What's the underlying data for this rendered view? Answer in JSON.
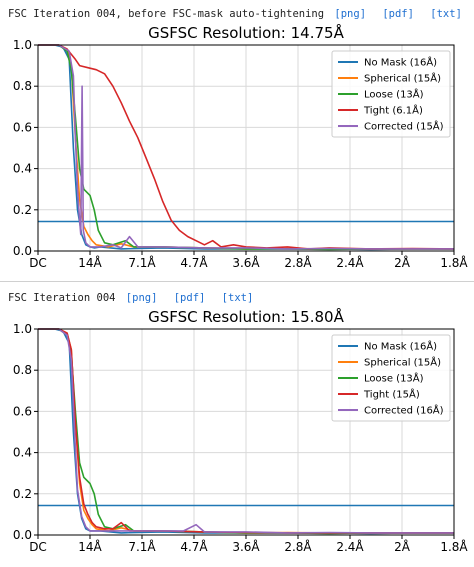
{
  "panels": [
    {
      "caption": "FSC Iteration 004, before FSC-mask auto-tightening",
      "links": [
        "[png]",
        "[pdf]",
        "[txt]"
      ]
    },
    {
      "caption": "FSC Iteration 004",
      "links": [
        "[png]",
        "[pdf]",
        "[txt]"
      ]
    }
  ],
  "chart_data": [
    {
      "type": "line",
      "title": "GSFSC Resolution: 14.75Å",
      "x_tick_labels": [
        "DC",
        "14Å",
        "7.1Å",
        "4.7Å",
        "3.6Å",
        "2.8Å",
        "2.4Å",
        "2Å",
        "1.8Å"
      ],
      "x_tick_positions": [
        0,
        0.125,
        0.25,
        0.375,
        0.5,
        0.625,
        0.75,
        0.875,
        1.0
      ],
      "xlim": [
        0,
        1.0
      ],
      "ylim": [
        0,
        1.0
      ],
      "y_ticks": [
        0.0,
        0.2,
        0.4,
        0.6,
        0.8,
        1.0
      ],
      "y_tick_labels": [
        "0.0",
        "0.2",
        "0.4",
        "0.6",
        "0.8",
        "1.0"
      ],
      "threshold": 0.143,
      "grid": true,
      "legend": "top-right",
      "series": [
        {
          "name": "No Mask (16Å)",
          "color": "#1f77b4",
          "points": [
            [
              0,
              1
            ],
            [
              0.04,
              1
            ],
            [
              0.06,
              0.99
            ],
            [
              0.075,
              0.93
            ],
            [
              0.085,
              0.5
            ],
            [
              0.095,
              0.2
            ],
            [
              0.105,
              0.08
            ],
            [
              0.115,
              0.03
            ],
            [
              0.125,
              0.02
            ],
            [
              0.135,
              0.015
            ],
            [
              0.15,
              0.02
            ],
            [
              0.2,
              0.01
            ],
            [
              0.3,
              0.015
            ],
            [
              0.4,
              0.01
            ],
            [
              0.5,
              0.01
            ],
            [
              0.6,
              0.01
            ],
            [
              0.7,
              0.01
            ],
            [
              0.8,
              0.008
            ],
            [
              0.9,
              0.01
            ],
            [
              1.0,
              0.01
            ]
          ]
        },
        {
          "name": "Spherical (15Å)",
          "color": "#ff7f0e",
          "points": [
            [
              0,
              1
            ],
            [
              0.05,
              1
            ],
            [
              0.07,
              0.98
            ],
            [
              0.08,
              0.9
            ],
            [
              0.09,
              0.55
            ],
            [
              0.1,
              0.25
            ],
            [
              0.11,
              0.12
            ],
            [
              0.12,
              0.08
            ],
            [
              0.13,
              0.05
            ],
            [
              0.14,
              0.03
            ],
            [
              0.17,
              0.02
            ],
            [
              0.2,
              0.035
            ],
            [
              0.23,
              0.02
            ],
            [
              0.3,
              0.02
            ],
            [
              0.4,
              0.015
            ],
            [
              0.5,
              0.01
            ],
            [
              0.6,
              0.012
            ],
            [
              0.7,
              0.01
            ],
            [
              0.8,
              0.01
            ],
            [
              0.9,
              0.01
            ],
            [
              1.0,
              0.01
            ]
          ]
        },
        {
          "name": "Loose (13Å)",
          "color": "#2ca02c",
          "points": [
            [
              0,
              1
            ],
            [
              0.05,
              1
            ],
            [
              0.07,
              0.97
            ],
            [
              0.08,
              0.88
            ],
            [
              0.09,
              0.65
            ],
            [
              0.1,
              0.4
            ],
            [
              0.11,
              0.3
            ],
            [
              0.125,
              0.27
            ],
            [
              0.135,
              0.2
            ],
            [
              0.145,
              0.1
            ],
            [
              0.16,
              0.04
            ],
            [
              0.18,
              0.03
            ],
            [
              0.21,
              0.05
            ],
            [
              0.23,
              0.02
            ],
            [
              0.3,
              0.02
            ],
            [
              0.4,
              0.015
            ],
            [
              0.5,
              0.01
            ],
            [
              0.6,
              0.01
            ],
            [
              0.7,
              0.008
            ],
            [
              0.8,
              0.01
            ],
            [
              0.9,
              0.01
            ],
            [
              1.0,
              0.01
            ]
          ]
        },
        {
          "name": "Tight (6.1Å)",
          "color": "#d62728",
          "points": [
            [
              0,
              1
            ],
            [
              0.05,
              1
            ],
            [
              0.07,
              0.98
            ],
            [
              0.09,
              0.93
            ],
            [
              0.1,
              0.9
            ],
            [
              0.12,
              0.89
            ],
            [
              0.14,
              0.88
            ],
            [
              0.16,
              0.86
            ],
            [
              0.18,
              0.8
            ],
            [
              0.2,
              0.72
            ],
            [
              0.22,
              0.63
            ],
            [
              0.24,
              0.55
            ],
            [
              0.26,
              0.45
            ],
            [
              0.28,
              0.35
            ],
            [
              0.3,
              0.24
            ],
            [
              0.32,
              0.15
            ],
            [
              0.34,
              0.1
            ],
            [
              0.36,
              0.07
            ],
            [
              0.38,
              0.05
            ],
            [
              0.4,
              0.03
            ],
            [
              0.42,
              0.05
            ],
            [
              0.44,
              0.02
            ],
            [
              0.47,
              0.03
            ],
            [
              0.5,
              0.02
            ],
            [
              0.55,
              0.015
            ],
            [
              0.6,
              0.02
            ],
            [
              0.65,
              0.01
            ],
            [
              0.7,
              0.015
            ],
            [
              0.8,
              0.01
            ],
            [
              0.9,
              0.012
            ],
            [
              1.0,
              0.01
            ]
          ]
        },
        {
          "name": "Corrected (15Å)",
          "color": "#9467bd",
          "points": [
            [
              0,
              1
            ],
            [
              0.05,
              1
            ],
            [
              0.075,
              0.97
            ],
            [
              0.085,
              0.85
            ],
            [
              0.09,
              0.55
            ],
            [
              0.095,
              0.3
            ],
            [
              0.1,
              0.15
            ],
            [
              0.103,
              0.08
            ],
            [
              0.106,
              0.8
            ],
            [
              0.109,
              0.1
            ],
            [
              0.115,
              0.04
            ],
            [
              0.125,
              0.02
            ],
            [
              0.15,
              0.02
            ],
            [
              0.18,
              0.03
            ],
            [
              0.2,
              0.015
            ],
            [
              0.22,
              0.07
            ],
            [
              0.24,
              0.02
            ],
            [
              0.3,
              0.02
            ],
            [
              0.4,
              0.015
            ],
            [
              0.5,
              0.015
            ],
            [
              0.6,
              0.01
            ],
            [
              0.7,
              0.012
            ],
            [
              0.8,
              0.01
            ],
            [
              0.9,
              0.01
            ],
            [
              1.0,
              0.01
            ]
          ]
        }
      ]
    },
    {
      "type": "line",
      "title": "GSFSC Resolution: 15.80Å",
      "x_tick_labels": [
        "DC",
        "14Å",
        "7.1Å",
        "4.7Å",
        "3.6Å",
        "2.8Å",
        "2.4Å",
        "2Å",
        "1.8Å"
      ],
      "x_tick_positions": [
        0,
        0.125,
        0.25,
        0.375,
        0.5,
        0.625,
        0.75,
        0.875,
        1.0
      ],
      "xlim": [
        0,
        1.0
      ],
      "ylim": [
        0,
        1.0
      ],
      "y_ticks": [
        0.0,
        0.2,
        0.4,
        0.6,
        0.8,
        1.0
      ],
      "y_tick_labels": [
        "0.0",
        "0.2",
        "0.4",
        "0.6",
        "0.8",
        "1.0"
      ],
      "threshold": 0.143,
      "grid": true,
      "legend": "top-right",
      "series": [
        {
          "name": "No Mask (16Å)",
          "color": "#1f77b4",
          "points": [
            [
              0,
              1
            ],
            [
              0.04,
              1
            ],
            [
              0.06,
              0.99
            ],
            [
              0.075,
              0.93
            ],
            [
              0.085,
              0.5
            ],
            [
              0.095,
              0.2
            ],
            [
              0.105,
              0.08
            ],
            [
              0.115,
              0.03
            ],
            [
              0.125,
              0.02
            ],
            [
              0.15,
              0.02
            ],
            [
              0.2,
              0.01
            ],
            [
              0.3,
              0.015
            ],
            [
              0.4,
              0.01
            ],
            [
              0.5,
              0.01
            ],
            [
              0.6,
              0.01
            ],
            [
              0.7,
              0.01
            ],
            [
              0.8,
              0.008
            ],
            [
              0.9,
              0.01
            ],
            [
              1.0,
              0.01
            ]
          ]
        },
        {
          "name": "Spherical (15Å)",
          "color": "#ff7f0e",
          "points": [
            [
              0,
              1
            ],
            [
              0.05,
              1
            ],
            [
              0.07,
              0.98
            ],
            [
              0.08,
              0.9
            ],
            [
              0.09,
              0.55
            ],
            [
              0.1,
              0.25
            ],
            [
              0.11,
              0.12
            ],
            [
              0.12,
              0.08
            ],
            [
              0.13,
              0.05
            ],
            [
              0.14,
              0.03
            ],
            [
              0.17,
              0.02
            ],
            [
              0.2,
              0.035
            ],
            [
              0.23,
              0.02
            ],
            [
              0.3,
              0.02
            ],
            [
              0.4,
              0.015
            ],
            [
              0.5,
              0.01
            ],
            [
              0.6,
              0.012
            ],
            [
              0.7,
              0.01
            ],
            [
              0.8,
              0.01
            ],
            [
              0.9,
              0.01
            ],
            [
              1.0,
              0.01
            ]
          ]
        },
        {
          "name": "Loose (13Å)",
          "color": "#2ca02c",
          "points": [
            [
              0,
              1
            ],
            [
              0.05,
              1
            ],
            [
              0.07,
              0.97
            ],
            [
              0.08,
              0.88
            ],
            [
              0.09,
              0.6
            ],
            [
              0.1,
              0.35
            ],
            [
              0.11,
              0.28
            ],
            [
              0.125,
              0.25
            ],
            [
              0.135,
              0.2
            ],
            [
              0.145,
              0.1
            ],
            [
              0.16,
              0.04
            ],
            [
              0.18,
              0.03
            ],
            [
              0.21,
              0.05
            ],
            [
              0.23,
              0.02
            ],
            [
              0.3,
              0.02
            ],
            [
              0.4,
              0.015
            ],
            [
              0.5,
              0.01
            ],
            [
              0.6,
              0.01
            ],
            [
              0.7,
              0.008
            ],
            [
              0.8,
              0.01
            ],
            [
              0.9,
              0.01
            ],
            [
              1.0,
              0.01
            ]
          ]
        },
        {
          "name": "Tight (15Å)",
          "color": "#d62728",
          "points": [
            [
              0,
              1
            ],
            [
              0.05,
              1
            ],
            [
              0.07,
              0.98
            ],
            [
              0.08,
              0.9
            ],
            [
              0.09,
              0.55
            ],
            [
              0.1,
              0.28
            ],
            [
              0.11,
              0.15
            ],
            [
              0.12,
              0.1
            ],
            [
              0.13,
              0.06
            ],
            [
              0.14,
              0.04
            ],
            [
              0.16,
              0.03
            ],
            [
              0.18,
              0.03
            ],
            [
              0.2,
              0.06
            ],
            [
              0.22,
              0.02
            ],
            [
              0.3,
              0.02
            ],
            [
              0.4,
              0.015
            ],
            [
              0.5,
              0.012
            ],
            [
              0.6,
              0.01
            ],
            [
              0.7,
              0.01
            ],
            [
              0.8,
              0.01
            ],
            [
              0.9,
              0.01
            ],
            [
              1.0,
              0.01
            ]
          ]
        },
        {
          "name": "Corrected (16Å)",
          "color": "#9467bd",
          "points": [
            [
              0,
              1
            ],
            [
              0.05,
              1
            ],
            [
              0.07,
              0.97
            ],
            [
              0.08,
              0.85
            ],
            [
              0.088,
              0.5
            ],
            [
              0.095,
              0.22
            ],
            [
              0.105,
              0.09
            ],
            [
              0.115,
              0.04
            ],
            [
              0.125,
              0.02
            ],
            [
              0.15,
              0.02
            ],
            [
              0.2,
              0.02
            ],
            [
              0.25,
              0.02
            ],
            [
              0.3,
              0.02
            ],
            [
              0.35,
              0.02
            ],
            [
              0.38,
              0.05
            ],
            [
              0.4,
              0.015
            ],
            [
              0.5,
              0.015
            ],
            [
              0.6,
              0.01
            ],
            [
              0.7,
              0.012
            ],
            [
              0.8,
              0.01
            ],
            [
              0.9,
              0.01
            ],
            [
              1.0,
              0.01
            ]
          ]
        }
      ]
    }
  ]
}
